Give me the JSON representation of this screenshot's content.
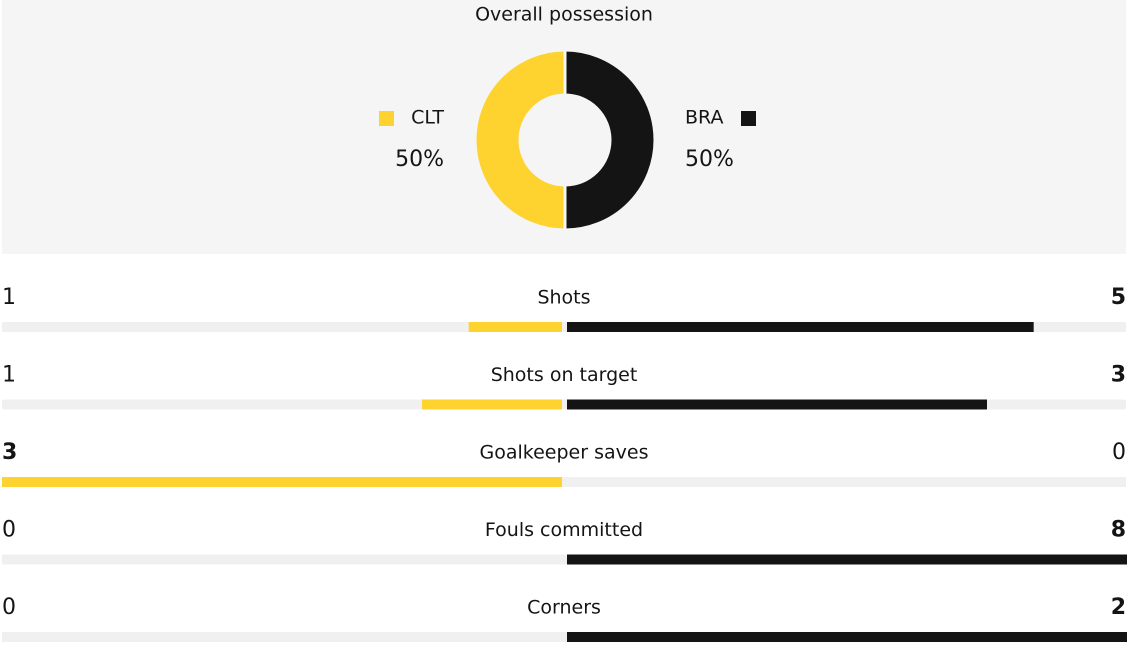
{
  "possession": {
    "type": "pie",
    "title": "Overall possession",
    "categories": [
      "CLT",
      "BRA"
    ],
    "values": [
      50,
      50
    ],
    "value_labels": [
      "50%",
      "50%"
    ],
    "colors": [
      "#fed22f",
      "#141414"
    ]
  },
  "stats": {
    "rows": [
      {
        "label": "Shots",
        "home": 1,
        "away": 5
      },
      {
        "label": "Shots on target",
        "home": 1,
        "away": 3
      },
      {
        "label": "Goalkeeper saves",
        "home": 3,
        "away": 0
      },
      {
        "label": "Fouls committed",
        "home": 0,
        "away": 8
      },
      {
        "label": "Corners",
        "home": 0,
        "away": 2
      }
    ]
  }
}
